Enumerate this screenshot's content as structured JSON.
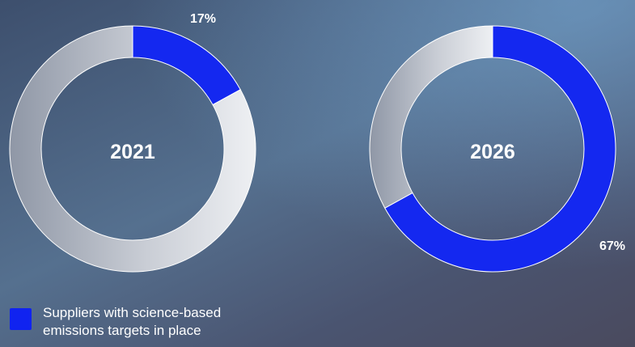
{
  "chart_data": [
    {
      "type": "donut",
      "center_label": "2021",
      "series": [
        {
          "name": "Suppliers with science-based emissions targets in place",
          "value": 17,
          "label": "17%",
          "color": "#1428f0"
        },
        {
          "value": 83,
          "color": "#d6d9df"
        }
      ]
    },
    {
      "type": "donut",
      "center_label": "2026",
      "series": [
        {
          "name": "Suppliers with science-based emissions targets in place",
          "value": 67,
          "label": "67%",
          "color": "#1428f0"
        },
        {
          "value": 33,
          "color": "#d6d9df"
        }
      ]
    }
  ],
  "legend": {
    "swatch_color": "#1023f0",
    "text": "Suppliers with science-based emissions targets in place"
  }
}
